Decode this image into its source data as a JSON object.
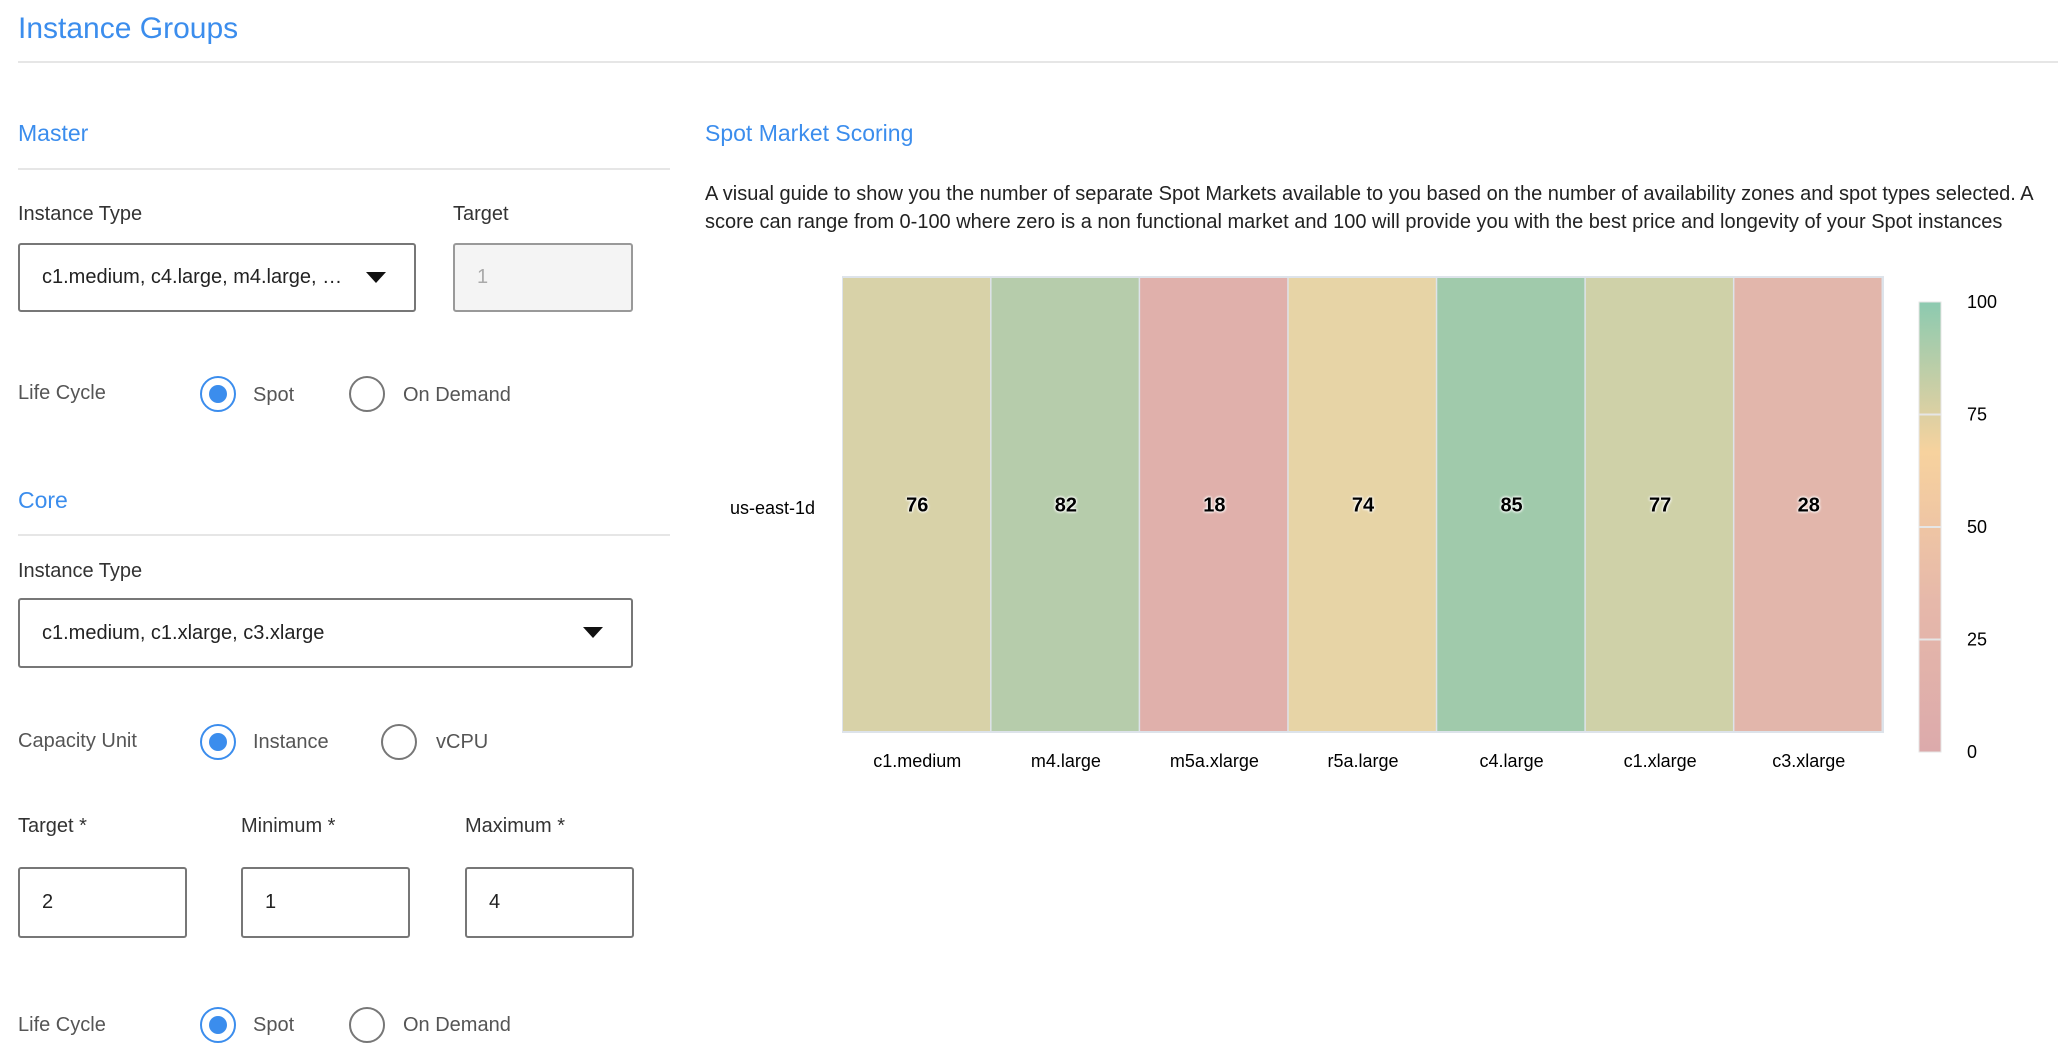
{
  "page_title": "Instance Groups",
  "master": {
    "heading": "Master",
    "instance_type_label": "Instance Type",
    "instance_type_value": "c1.medium, c4.large, m4.large, …",
    "target_label": "Target",
    "target_value": "1",
    "life_cycle_label": "Life Cycle",
    "life_cycle_options": [
      "Spot",
      "On Demand"
    ],
    "life_cycle_selected": "Spot"
  },
  "core": {
    "heading": "Core",
    "instance_type_label": "Instance Type",
    "instance_type_value": "c1.medium, c1.xlarge, c3.xlarge",
    "capacity_unit_label": "Capacity Unit",
    "capacity_unit_options": [
      "Instance",
      "vCPU"
    ],
    "capacity_unit_selected": "Instance",
    "target_label": "Target *",
    "target_value": "2",
    "minimum_label": "Minimum *",
    "minimum_value": "1",
    "maximum_label": "Maximum *",
    "maximum_value": "4",
    "life_cycle_label": "Life Cycle",
    "life_cycle_options": [
      "Spot",
      "On Demand"
    ],
    "life_cycle_selected": "Spot"
  },
  "spot": {
    "heading": "Spot Market Scoring",
    "description": "A visual guide to show you the number of separate Spot Markets available to you based on the number of availability zones and spot types selected. A score can range from 0-100 where zero is a non functional market and 100 will provide you with the best price and longevity of your Spot instances"
  },
  "chart_data": {
    "type": "heatmap",
    "y_categories": [
      "us-east-1d"
    ],
    "x_categories": [
      "c1.medium",
      "m4.large",
      "m5a.xlarge",
      "r5a.large",
      "c4.large",
      "c1.xlarge",
      "c3.xlarge"
    ],
    "values": [
      [
        76,
        82,
        18,
        74,
        85,
        77,
        28
      ]
    ],
    "cell_colors": [
      "#d8d2a8",
      "#b6ccab",
      "#e0b0ab",
      "#e7d4a6",
      "#a0caab",
      "#cfd1a8",
      "#e2b6ab"
    ],
    "colorbar": {
      "range": [
        0,
        100
      ],
      "ticks": [
        "100",
        "75",
        "50",
        "25",
        "0"
      ],
      "colors": [
        "#dcaaab",
        "#e6b8aa",
        "#f7d29e",
        "#8ccab0"
      ]
    }
  },
  "colors": {
    "accent": "#3b8ded"
  }
}
